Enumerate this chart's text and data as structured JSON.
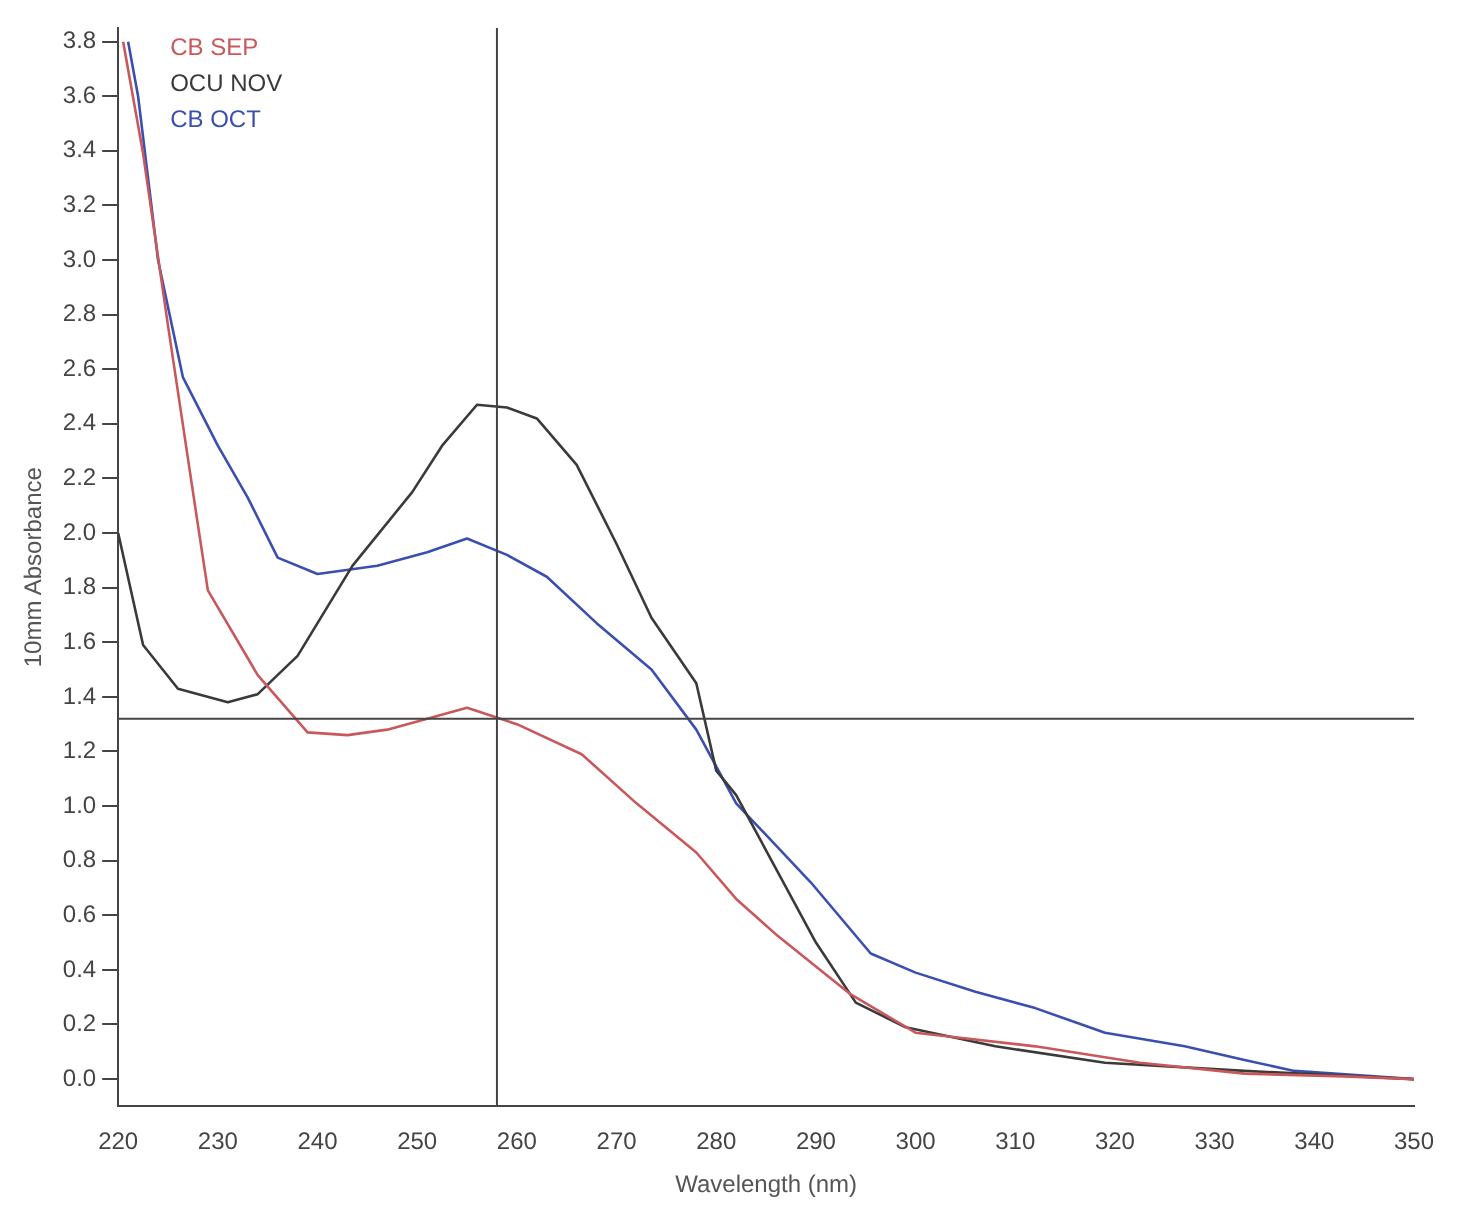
{
  "chart_data": {
    "type": "line",
    "xlabel": "Wavelength (nm)",
    "ylabel": "10mm Absorbance",
    "legend": "top left",
    "marker": "none",
    "line_style": "solid",
    "xlim": [
      220,
      350
    ],
    "xticks": [
      220,
      230,
      240,
      250,
      260,
      270,
      280,
      290,
      300,
      310,
      320,
      330,
      340,
      350
    ],
    "ylim": [
      -0.1,
      3.85
    ],
    "yticks": [
      {
        "value": 0,
        "label": "0.0"
      },
      {
        "value": 0.2,
        "label": "0.2"
      },
      {
        "value": 0.4,
        "label": "0.4"
      },
      {
        "value": 0.6,
        "label": "0.6"
      },
      {
        "value": 0.8,
        "label": "0.8"
      },
      {
        "value": 1,
        "label": "1.0"
      },
      {
        "value": 1.2,
        "label": "1.2"
      },
      {
        "value": 1.4,
        "label": "1.4"
      },
      {
        "value": 1.6,
        "label": "1.6"
      },
      {
        "value": 1.8,
        "label": "1.8"
      },
      {
        "value": 2,
        "label": "2.0"
      },
      {
        "value": 2.2,
        "label": "2.2"
      },
      {
        "value": 2.4,
        "label": "2.4"
      },
      {
        "value": 2.6,
        "label": "2.6"
      },
      {
        "value": 2.8,
        "label": "2.8"
      },
      {
        "value": 3,
        "label": "3.0"
      },
      {
        "value": 3.2,
        "label": "3.2"
      },
      {
        "value": 3.4,
        "label": "3.4"
      },
      {
        "value": 3.6,
        "label": "3.6"
      },
      {
        "value": 3.8,
        "label": "3.8"
      }
    ],
    "ref_lines": [
      {
        "axis": "x",
        "value": 258,
        "color": "#444444"
      },
      {
        "axis": "y",
        "value": 1.32,
        "color": "#444444"
      }
    ],
    "series": [
      {
        "name": "CB SEP",
        "color": "#c8585c",
        "x": [
          220.5,
          222.5,
          225,
          228,
          229,
          234,
          239,
          243,
          247,
          251,
          255,
          260,
          266.5,
          272,
          278,
          282,
          286,
          293.5,
          300,
          312,
          322.5,
          333,
          343,
          350
        ],
        "values": [
          3.8,
          3.39,
          2.76,
          2.03,
          1.79,
          1.48,
          1.27,
          1.26,
          1.28,
          1.32,
          1.36,
          1.3,
          1.19,
          1.01,
          0.83,
          0.66,
          0.53,
          0.31,
          0.17,
          0.12,
          0.06,
          0.02,
          0.01,
          0.0
        ]
      },
      {
        "name": "OCU NOV",
        "color": "#3a3a3a",
        "x": [
          220,
          222.5,
          226,
          231,
          234,
          238,
          242,
          243.5,
          249.5,
          252.5,
          256,
          259,
          262,
          266,
          270,
          273.5,
          278,
          280,
          282,
          286,
          290,
          294,
          299,
          308,
          319,
          333,
          350
        ],
        "values": [
          2.0,
          1.59,
          1.43,
          1.38,
          1.41,
          1.55,
          1.79,
          1.88,
          2.15,
          2.32,
          2.47,
          2.46,
          2.42,
          2.25,
          1.96,
          1.69,
          1.45,
          1.13,
          1.04,
          0.77,
          0.5,
          0.28,
          0.19,
          0.12,
          0.06,
          0.03,
          0.0
        ]
      },
      {
        "name": "CB OCT",
        "color": "#3a4fb0",
        "x": [
          221,
          222,
          224,
          226.5,
          230,
          233,
          236,
          240,
          246,
          251,
          255,
          259,
          263,
          268,
          273.5,
          278,
          282,
          289.5,
          295.5,
          300,
          306,
          312,
          319,
          327,
          333,
          338,
          350
        ],
        "values": [
          3.8,
          3.6,
          3.0,
          2.57,
          2.32,
          2.13,
          1.91,
          1.85,
          1.88,
          1.93,
          1.98,
          1.92,
          1.84,
          1.67,
          1.5,
          1.28,
          1.01,
          0.72,
          0.46,
          0.39,
          0.32,
          0.26,
          0.17,
          0.12,
          0.07,
          0.03,
          0.0
        ]
      }
    ]
  }
}
